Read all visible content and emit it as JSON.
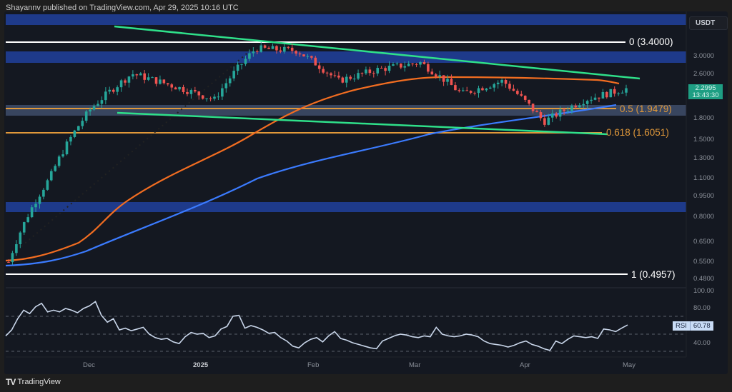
{
  "header": {
    "publish_text": "Shayannv published on TradingView.com, Apr 29, 2025 10:16 UTC"
  },
  "footer": {
    "brand": "TradingView",
    "logo_glyph": "TV"
  },
  "price_axis": {
    "currency": "USDT",
    "ticks": [
      "3.0000",
      "2.6000",
      "1.8000",
      "1.5000",
      "1.3000",
      "1.1000",
      "0.9500",
      "0.8000",
      "0.6500",
      "0.5500",
      "0.4800"
    ],
    "current_price": "2.2995",
    "countdown": "13:43:30"
  },
  "fib_levels": [
    {
      "label": "0 (3.4000)",
      "color": "#ffffff"
    },
    {
      "label": "0.5 (1.9479)",
      "color": "#e0983a"
    },
    {
      "label": "0.618 (1.6051)",
      "color": "#e0983a"
    },
    {
      "label": "1 (0.4957)",
      "color": "#ffffff"
    }
  ],
  "rsi_axis": {
    "ticks": [
      "100.00",
      "80.00",
      "40.00"
    ],
    "indicator": "RSI",
    "value": "60.78"
  },
  "time_axis": {
    "labels": [
      "Dec",
      "2025",
      "Feb",
      "Mar",
      "Apr",
      "May"
    ]
  },
  "colors": {
    "background": "#141821",
    "bull_candle": "#26a69a",
    "bear_candle": "#ef5350",
    "ma_orange": "#f26d21",
    "ma_blue": "#3b7bff",
    "trendline_green": "#2fe08a",
    "zone_blue": "#1e3a8a",
    "fib_orange": "#e0983a",
    "rsi_line": "#c9d6ea"
  },
  "chart_data": [
    {
      "type": "candlestick",
      "title": "Price chart (USDT), daily",
      "ylabel": "USDT",
      "xlabel": "",
      "y_scale": "log",
      "ylim": [
        0.47,
        4.0
      ],
      "x_ticks": [
        "Dec",
        "2025",
        "Feb",
        "Mar",
        "Apr",
        "May"
      ],
      "y_ticks": [
        3.0,
        2.6,
        1.8,
        1.5,
        1.3,
        1.1,
        0.95,
        0.8,
        0.65,
        0.55,
        0.48
      ],
      "last_price": 2.2995,
      "approx_close_path": [
        {
          "x": "Nov mid",
          "close": 0.55
        },
        {
          "x": "Nov late",
          "close": 1.1
        },
        {
          "x": "Dec 1",
          "close": 1.95
        },
        {
          "x": "Dec 3",
          "close": 2.6
        },
        {
          "x": "Dec mid",
          "close": 2.35
        },
        {
          "x": "Jan 1",
          "close": 2.1
        },
        {
          "x": "Jan mid",
          "close": 3.2
        },
        {
          "x": "Jan 20",
          "close": 3.15
        },
        {
          "x": "Feb 3",
          "close": 2.45
        },
        {
          "x": "Feb mid",
          "close": 2.7
        },
        {
          "x": "Mar 2",
          "close": 2.85
        },
        {
          "x": "Mar 10",
          "close": 2.2
        },
        {
          "x": "Mar 20",
          "close": 2.45
        },
        {
          "x": "Apr 7",
          "close": 1.75
        },
        {
          "x": "Apr 15",
          "close": 2.1
        },
        {
          "x": "Apr 29",
          "close": 2.2995
        }
      ],
      "overlays": [
        {
          "name": "Moving average (orange)",
          "approx": [
            0.55,
            0.7,
            1.05,
            1.6,
            2.1,
            2.5,
            2.45
          ]
        },
        {
          "name": "Moving average (blue)",
          "approx": [
            0.5,
            0.6,
            0.8,
            1.1,
            1.45,
            1.75,
            1.95
          ]
        },
        {
          "name": "Descending trendline (upper)",
          "from": 3.55,
          "to": 2.55
        },
        {
          "name": "Descending trendline (lower)",
          "from": 1.9,
          "to": 1.6
        }
      ],
      "horizontal_levels": [
        {
          "label": "0 (3.4000)",
          "value": 3.4
        },
        {
          "label": "0.5 (1.9479)",
          "value": 1.9479
        },
        {
          "label": "0.618 (1.6051)",
          "value": 1.6051
        },
        {
          "label": "1 (0.4957)",
          "value": 0.4957
        }
      ],
      "zones": [
        {
          "name": "Resistance zone top",
          "range": [
            3.75,
            3.95
          ]
        },
        {
          "name": "Resistance zone",
          "range": [
            2.9,
            3.15
          ]
        },
        {
          "name": "Support zone (0.5 fib)",
          "range": [
            1.85,
            2.0
          ]
        },
        {
          "name": "Demand zone",
          "range": [
            0.85,
            0.92
          ]
        }
      ]
    },
    {
      "type": "line",
      "title": "RSI",
      "ylim": [
        20,
        100
      ],
      "y_ticks": [
        100,
        80,
        40
      ],
      "reference_lines": [
        70,
        50,
        30
      ],
      "last_value": 60.78,
      "approx_values": [
        48,
        55,
        68,
        78,
        74,
        82,
        86,
        76,
        78,
        76,
        80,
        78,
        75,
        80,
        83,
        88,
        72,
        64,
        68,
        55,
        57,
        54,
        56,
        58,
        50,
        46,
        44,
        45,
        41,
        39,
        47,
        52,
        50,
        51,
        46,
        48,
        56,
        59,
        71,
        72,
        57,
        60,
        58,
        55,
        51,
        52,
        46,
        42,
        36,
        34,
        40,
        44,
        46,
        41,
        48,
        53,
        45,
        43,
        40,
        38,
        36,
        34,
        33,
        42,
        45,
        48,
        50,
        49,
        47,
        46,
        48,
        47,
        58,
        50,
        48,
        47,
        48,
        50,
        49,
        47,
        42,
        39,
        38,
        37,
        35,
        37,
        40,
        42,
        38,
        36,
        33,
        31,
        42,
        39,
        44,
        48,
        47,
        46,
        47,
        45,
        56,
        55,
        53,
        57,
        60.78
      ]
    }
  ]
}
